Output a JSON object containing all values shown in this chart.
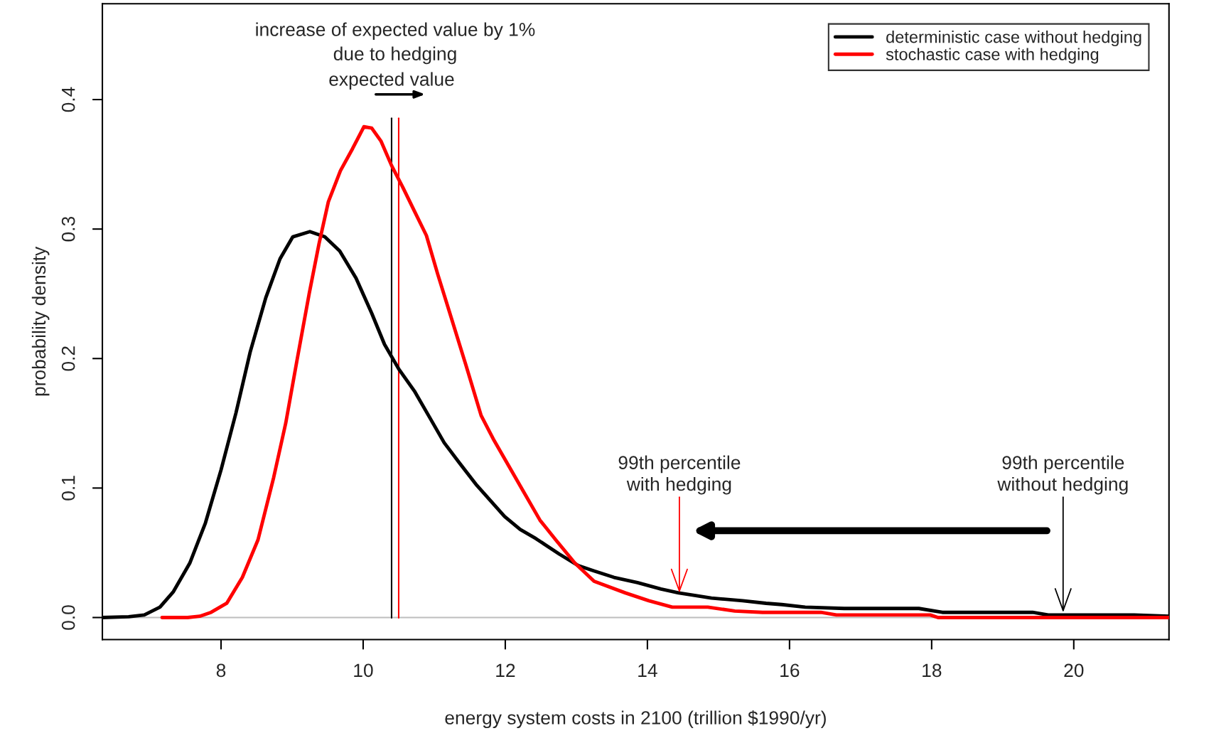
{
  "chart_data": {
    "type": "line",
    "xlabel": "energy system costs in 2100 (trillion $1990/yr)",
    "ylabel": "probability density",
    "xlim": [
      6.33,
      21.34
    ],
    "ylim": [
      -0.017,
      0.474
    ],
    "xticks": [
      8,
      10,
      12,
      14,
      16,
      18,
      20
    ],
    "yticks": [
      {
        "value": 0,
        "label": "0.0"
      },
      {
        "value": 0.1,
        "label": "0.1"
      },
      {
        "value": 0.2,
        "label": "0.2"
      },
      {
        "value": 0.3,
        "label": "0.3"
      },
      {
        "value": 0.4,
        "label": "0.4"
      }
    ],
    "legend": "top right",
    "grid": false,
    "line_style": "solid",
    "marker": "none",
    "series": [
      {
        "name": "deterministic case without hedging",
        "color": "#000000",
        "x": [
          6.33,
          6.7,
          6.92,
          7.14,
          7.33,
          7.56,
          7.78,
          8.0,
          8.21,
          8.41,
          8.63,
          8.83,
          9.01,
          9.25,
          9.46,
          9.67,
          9.9,
          10.12,
          10.3,
          10.5,
          10.72,
          10.92,
          11.14,
          11.36,
          11.6,
          11.99,
          12.21,
          12.43,
          12.76,
          13.03,
          13.25,
          13.53,
          13.86,
          14.19,
          14.44,
          14.68,
          14.9,
          15.34,
          15.67,
          15.89,
          16.22,
          16.77,
          17.82,
          18.15,
          19.42,
          19.64,
          20.85,
          21.34
        ],
        "values": [
          0,
          0.0006,
          0.002,
          0.008,
          0.02,
          0.042,
          0.073,
          0.114,
          0.158,
          0.205,
          0.247,
          0.277,
          0.294,
          0.298,
          0.294,
          0.283,
          0.262,
          0.235,
          0.211,
          0.192,
          0.175,
          0.156,
          0.135,
          0.119,
          0.102,
          0.078,
          0.068,
          0.061,
          0.049,
          0.04,
          0.036,
          0.031,
          0.027,
          0.022,
          0.019,
          0.017,
          0.015,
          0.013,
          0.011,
          0.01,
          0.008,
          0.007,
          0.007,
          0.004,
          0.004,
          0.002,
          0.002,
          0.001
        ]
      },
      {
        "name": "stochastic case with hedging",
        "color": "#ff0000",
        "x": [
          7.17,
          7.53,
          7.7,
          7.86,
          8.08,
          8.3,
          8.52,
          8.74,
          8.91,
          9.07,
          9.24,
          9.38,
          9.51,
          9.68,
          9.85,
          10.01,
          10.12,
          10.25,
          10.4,
          10.56,
          10.72,
          10.89,
          11.05,
          11.22,
          11.44,
          11.66,
          11.83,
          12.05,
          12.27,
          12.49,
          12.71,
          12.98,
          13.25,
          13.69,
          14.02,
          14.35,
          14.85,
          15.23,
          15.62,
          16.44,
          16.66,
          17.98,
          18.09,
          21.34
        ],
        "values": [
          0,
          0,
          0.001,
          0.004,
          0.011,
          0.031,
          0.06,
          0.108,
          0.15,
          0.199,
          0.25,
          0.289,
          0.321,
          0.345,
          0.362,
          0.379,
          0.378,
          0.368,
          0.349,
          0.332,
          0.314,
          0.295,
          0.265,
          0.235,
          0.196,
          0.156,
          0.138,
          0.117,
          0.096,
          0.075,
          0.06,
          0.042,
          0.028,
          0.019,
          0.013,
          0.008,
          0.008,
          0.005,
          0.004,
          0.004,
          0.002,
          0.002,
          0,
          0
        ]
      }
    ],
    "ref_lines": [
      {
        "axis": "y",
        "value": 0,
        "color": "#bebebe"
      },
      {
        "axis": "x",
        "value": 10.4,
        "color": "#000000",
        "label": "expected value"
      },
      {
        "axis": "x",
        "value": 10.5,
        "color": "#ff0000"
      }
    ],
    "annotations": [
      "increase of expected value by 1%\ndue to hedging",
      {
        "text": "99th percentile\nwith hedging",
        "x": 14.45,
        "y": 0.019
      },
      {
        "text": "99th percentile\nwithout hedging",
        "x": 19.85,
        "y": 0.004
      }
    ]
  }
}
